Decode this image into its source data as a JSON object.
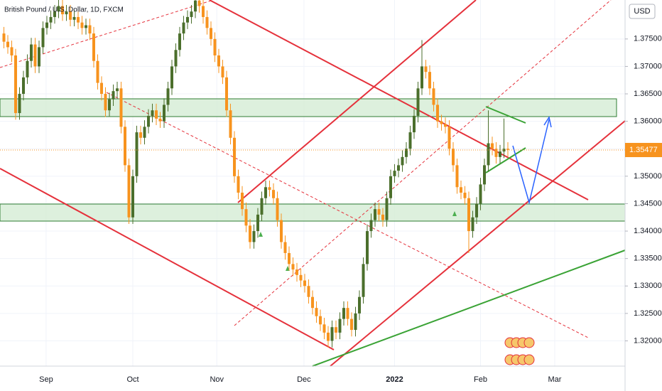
{
  "chart_data": {
    "type": "candlestick",
    "title": "British Pound / U.S. Dollar, 1D, FXCM",
    "currency": "USD",
    "up_color": "#4b6f2c",
    "down_color": "#f7931e",
    "x": [
      1,
      2,
      3,
      4,
      5,
      6,
      7,
      8,
      9,
      10,
      11,
      12,
      13,
      14,
      15,
      16,
      17,
      18,
      19,
      20,
      21,
      22,
      23,
      24,
      25,
      26,
      27,
      28,
      29,
      30,
      31,
      32,
      33,
      34,
      35,
      36,
      37,
      38,
      39,
      40,
      41,
      42,
      43,
      44,
      45,
      46,
      47,
      48,
      49,
      50,
      51,
      52,
      53,
      54,
      55,
      56,
      57,
      58,
      59,
      60,
      61,
      62,
      63,
      64,
      65,
      66,
      67,
      68,
      69,
      70,
      71,
      72,
      73,
      74,
      75,
      76,
      77,
      78,
      79,
      80,
      81,
      82,
      83,
      84,
      85,
      86,
      87,
      88,
      89,
      90,
      91,
      92,
      93,
      94,
      95,
      96,
      97,
      98,
      99,
      100,
      101,
      102,
      103,
      104,
      105,
      106,
      107,
      108,
      109,
      110,
      111,
      112,
      113,
      114,
      115,
      116,
      117,
      118,
      119,
      120,
      121,
      122,
      123,
      124,
      125,
      126,
      127,
      128,
      129,
      130
    ],
    "open": [
      1.376,
      1.3745,
      1.3735,
      1.372,
      1.3615,
      1.365,
      1.368,
      1.371,
      1.374,
      1.37,
      1.3735,
      1.377,
      1.378,
      1.379,
      1.38,
      1.381,
      1.3795,
      1.38,
      1.3785,
      1.379,
      1.378,
      1.377,
      1.3775,
      1.376,
      1.371,
      1.367,
      1.365,
      1.362,
      1.364,
      1.3655,
      1.366,
      1.359,
      1.352,
      1.3425,
      1.35,
      1.358,
      1.357,
      1.359,
      1.361,
      1.362,
      1.3605,
      1.36,
      1.363,
      1.366,
      1.37,
      1.373,
      1.376,
      1.378,
      1.379,
      1.38,
      1.382,
      1.381,
      1.379,
      1.377,
      1.375,
      1.372,
      1.37,
      1.368,
      1.362,
      1.357,
      1.35,
      1.347,
      1.344,
      1.341,
      1.338,
      1.34,
      1.343,
      1.346,
      1.348,
      1.3475,
      1.346,
      1.342,
      1.338,
      1.336,
      1.334,
      1.333,
      1.332,
      1.331,
      1.33,
      1.328,
      1.326,
      1.3245,
      1.323,
      1.3215,
      1.32,
      1.3225,
      1.3215,
      1.324,
      1.326,
      1.324,
      1.322,
      1.325,
      1.328,
      1.334,
      1.34,
      1.342,
      1.344,
      1.343,
      1.342,
      1.346,
      1.35,
      1.351,
      1.352,
      1.3535,
      1.355,
      1.358,
      1.361,
      1.366,
      1.37,
      1.369,
      1.366,
      1.363,
      1.36,
      1.3595,
      1.359,
      1.355,
      1.352,
      1.348,
      1.347,
      1.346,
      1.34,
      1.3425,
      1.345,
      1.3485,
      1.352,
      1.356,
      1.355,
      1.3535,
      1.3545,
      1.355
    ],
    "high": [
      1.3772,
      1.3757,
      1.3747,
      1.3732,
      1.3662,
      1.3692,
      1.3722,
      1.3752,
      1.3752,
      1.3747,
      1.3782,
      1.3792,
      1.3802,
      1.3812,
      1.3822,
      1.3822,
      1.3812,
      1.3812,
      1.3802,
      1.3802,
      1.3792,
      1.3787,
      1.3787,
      1.3772,
      1.3722,
      1.3682,
      1.3662,
      1.3652,
      1.3667,
      1.3672,
      1.3672,
      1.3602,
      1.3532,
      1.3512,
      1.3592,
      1.3592,
      1.3602,
      1.3622,
      1.3632,
      1.3632,
      1.3617,
      1.3642,
      1.3672,
      1.3712,
      1.3742,
      1.3772,
      1.3792,
      1.3802,
      1.3812,
      1.3832,
      1.3832,
      1.3822,
      1.3802,
      1.3782,
      1.3762,
      1.3732,
      1.3712,
      1.3692,
      1.3632,
      1.3582,
      1.3512,
      1.3482,
      1.3452,
      1.3422,
      1.3412,
      1.3442,
      1.3472,
      1.3492,
      1.3492,
      1.3487,
      1.3472,
      1.3432,
      1.3392,
      1.3372,
      1.3352,
      1.3342,
      1.3332,
      1.3322,
      1.3312,
      1.3292,
      1.3272,
      1.3257,
      1.3242,
      1.3227,
      1.3237,
      1.3237,
      1.3252,
      1.3272,
      1.3272,
      1.3252,
      1.3262,
      1.3292,
      1.3352,
      1.3412,
      1.3432,
      1.3452,
      1.3452,
      1.3442,
      1.3472,
      1.3512,
      1.3522,
      1.3532,
      1.3547,
      1.3562,
      1.3592,
      1.3622,
      1.3672,
      1.3748,
      1.3712,
      1.3702,
      1.3672,
      1.3642,
      1.3612,
      1.3607,
      1.3602,
      1.3562,
      1.3532,
      1.3492,
      1.3482,
      1.3472,
      1.3437,
      1.3462,
      1.3497,
      1.3532,
      1.362,
      1.3572,
      1.3562,
      1.3557,
      1.3605,
      1.3562
    ],
    "low": [
      1.3733,
      1.3723,
      1.3708,
      1.3603,
      1.3603,
      1.3638,
      1.3668,
      1.3698,
      1.3688,
      1.3688,
      1.3723,
      1.3758,
      1.3768,
      1.3778,
      1.3788,
      1.3783,
      1.3783,
      1.3773,
      1.3773,
      1.3768,
      1.3758,
      1.3758,
      1.3748,
      1.3698,
      1.3658,
      1.3638,
      1.3608,
      1.3608,
      1.3628,
      1.3643,
      1.3578,
      1.3508,
      1.3413,
      1.3413,
      1.3488,
      1.3558,
      1.3558,
      1.3578,
      1.3598,
      1.3593,
      1.3588,
      1.3588,
      1.3618,
      1.3648,
      1.3688,
      1.3718,
      1.3748,
      1.3768,
      1.3778,
      1.3788,
      1.3798,
      1.3778,
      1.3758,
      1.3738,
      1.3708,
      1.3688,
      1.3668,
      1.3608,
      1.3558,
      1.3488,
      1.3458,
      1.3428,
      1.3398,
      1.3368,
      1.3368,
      1.3388,
      1.3418,
      1.3448,
      1.3463,
      1.3448,
      1.3408,
      1.3368,
      1.3348,
      1.3328,
      1.3318,
      1.3308,
      1.3298,
      1.3288,
      1.3268,
      1.3248,
      1.3233,
      1.3218,
      1.3203,
      1.3188,
      1.3188,
      1.3203,
      1.3203,
      1.3228,
      1.3228,
      1.3208,
      1.3208,
      1.3238,
      1.3268,
      1.3328,
      1.3388,
      1.3408,
      1.3418,
      1.3408,
      1.3408,
      1.3448,
      1.3488,
      1.3498,
      1.3508,
      1.3523,
      1.3538,
      1.3568,
      1.3598,
      1.3648,
      1.3678,
      1.3648,
      1.3618,
      1.3588,
      1.3583,
      1.3578,
      1.3538,
      1.3508,
      1.3468,
      1.3458,
      1.3448,
      1.336,
      1.3388,
      1.3413,
      1.3438,
      1.3473,
      1.3508,
      1.3538,
      1.3523,
      1.3523,
      1.3533,
      1.3536
    ],
    "close": [
      1.3745,
      1.3735,
      1.372,
      1.3615,
      1.365,
      1.368,
      1.371,
      1.374,
      1.37,
      1.3735,
      1.377,
      1.378,
      1.379,
      1.38,
      1.381,
      1.3795,
      1.38,
      1.3785,
      1.379,
      1.378,
      1.377,
      1.3775,
      1.376,
      1.371,
      1.367,
      1.365,
      1.362,
      1.364,
      1.3655,
      1.366,
      1.359,
      1.352,
      1.3425,
      1.35,
      1.358,
      1.357,
      1.359,
      1.361,
      1.362,
      1.3605,
      1.36,
      1.363,
      1.366,
      1.37,
      1.373,
      1.376,
      1.378,
      1.379,
      1.38,
      1.382,
      1.381,
      1.379,
      1.377,
      1.375,
      1.372,
      1.37,
      1.368,
      1.362,
      1.357,
      1.35,
      1.347,
      1.344,
      1.341,
      1.338,
      1.34,
      1.343,
      1.346,
      1.348,
      1.3475,
      1.346,
      1.342,
      1.338,
      1.336,
      1.334,
      1.333,
      1.332,
      1.331,
      1.33,
      1.328,
      1.326,
      1.3245,
      1.323,
      1.3215,
      1.32,
      1.3225,
      1.3215,
      1.324,
      1.326,
      1.324,
      1.322,
      1.325,
      1.328,
      1.334,
      1.34,
      1.342,
      1.344,
      1.343,
      1.342,
      1.346,
      1.35,
      1.351,
      1.352,
      1.3535,
      1.355,
      1.358,
      1.361,
      1.366,
      1.37,
      1.369,
      1.366,
      1.363,
      1.36,
      1.3595,
      1.359,
      1.355,
      1.352,
      1.348,
      1.347,
      1.346,
      1.34,
      1.3425,
      1.345,
      1.3485,
      1.352,
      1.356,
      1.355,
      1.3535,
      1.3545,
      1.355,
      1.3548
    ],
    "xlim": [
      0,
      160
    ],
    "xticks": [
      {
        "value": 11.8,
        "label": "Sep"
      },
      {
        "value": 34,
        "label": "Oct"
      },
      {
        "value": 55.5,
        "label": "Nov"
      },
      {
        "value": 77.8,
        "label": "Dec"
      },
      {
        "value": 101,
        "label": "2022"
      },
      {
        "value": 123,
        "label": "Feb"
      },
      {
        "value": 142,
        "label": "Mar"
      }
    ],
    "ylim": [
      1.3154,
      1.3821
    ],
    "yticks": [
      {
        "value": 1.32,
        "label": "1.32000"
      },
      {
        "value": 1.325,
        "label": "1.32500"
      },
      {
        "value": 1.33,
        "label": "1.33000"
      },
      {
        "value": 1.335,
        "label": "1.33500"
      },
      {
        "value": 1.34,
        "label": "1.34000"
      },
      {
        "value": 1.345,
        "label": "1.34500"
      },
      {
        "value": 1.35,
        "label": "1.35000"
      },
      {
        "value": 1.355,
        "label": "1.35500"
      },
      {
        "value": 1.36,
        "label": "1.36000"
      },
      {
        "value": 1.365,
        "label": "1.36500"
      },
      {
        "value": 1.37,
        "label": "1.37000"
      },
      {
        "value": 1.375,
        "label": "1.37500"
      }
    ],
    "last_price": {
      "value": 1.35477,
      "label": "1.35477"
    }
  }
}
